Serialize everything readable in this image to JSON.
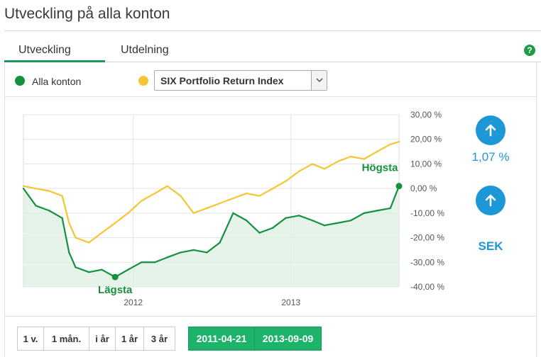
{
  "page": {
    "title": "Utveckling på alla konton"
  },
  "tabs": [
    {
      "label": "Utveckling",
      "active": true
    },
    {
      "label": "Utdelning",
      "active": false
    }
  ],
  "help_icon": "?",
  "legend": {
    "series_1_label": "Alla konton",
    "series_2_select_value": "SIX Portfolio Return Index"
  },
  "summary": {
    "change_percent": "1,07 %",
    "currency": "SEK"
  },
  "range_buttons": [
    "1 v.",
    "1 mån.",
    "i år",
    "1 år",
    "3 år"
  ],
  "date_range": {
    "from": "2011-04-21",
    "to": "2013-09-09"
  },
  "colors": {
    "accent_green": "#1db36a",
    "series_green": "#14913f",
    "series_yellow": "#f6c533",
    "summary_blue": "#1e97d6"
  },
  "chart_data": {
    "type": "line",
    "x": [
      "2011-04-21",
      "2011-05-20",
      "2011-06-20",
      "2011-07-20",
      "2011-08-05",
      "2011-08-20",
      "2011-09-20",
      "2011-10-20",
      "2011-11-20",
      "2011-12-20",
      "2012-01-20",
      "2012-02-20",
      "2012-03-20",
      "2012-04-20",
      "2012-05-20",
      "2012-06-20",
      "2012-07-20",
      "2012-08-20",
      "2012-09-20",
      "2012-10-20",
      "2012-11-20",
      "2012-12-20",
      "2013-01-20",
      "2013-02-20",
      "2013-03-20",
      "2013-04-20",
      "2013-05-20",
      "2013-06-20",
      "2013-07-20",
      "2013-08-20",
      "2013-09-09"
    ],
    "series": [
      {
        "name": "Alla konton",
        "color": "#14913f",
        "values": [
          0,
          -7,
          -9,
          -12,
          -26,
          -32,
          -34,
          -33,
          -36,
          -33,
          -30,
          -30,
          -28,
          -26,
          -25,
          -26,
          -22,
          -10,
          -13,
          -18,
          -16,
          -12,
          -11,
          -13,
          -15,
          -14,
          -13,
          -10,
          -9,
          -8,
          1
        ]
      },
      {
        "name": "SIX Portfolio Return Index",
        "color": "#f6c533",
        "values": [
          1,
          0,
          -1,
          -3,
          -14,
          -20,
          -22,
          -18,
          -14,
          -10,
          -5,
          -2,
          1,
          -3,
          -10,
          -8,
          -6,
          -4,
          -2,
          -3,
          0,
          3,
          7,
          10,
          8,
          11,
          13,
          12,
          15,
          18,
          19
        ]
      }
    ],
    "annotations": {
      "low_label": "Lägsta",
      "high_label": "Högsta"
    },
    "xticks": [
      "2012",
      "2013"
    ],
    "yticks": [
      "30,00 %",
      "20,00 %",
      "10,00 %",
      "0,00 %",
      "-10,00 %",
      "-20,00 %",
      "-30,00 %",
      "-40,00 %"
    ],
    "ylim": [
      -40,
      30
    ],
    "grid": true
  }
}
